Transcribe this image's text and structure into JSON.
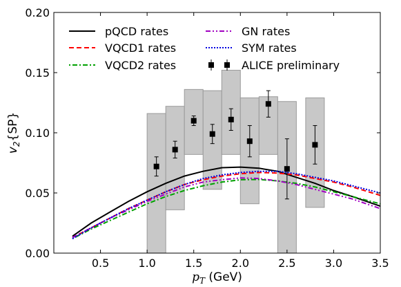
{
  "chart_data": {
    "type": "line",
    "xlabel_var": "p",
    "xlabel_sub": "T",
    "xlabel_unit": " (GeV)",
    "ylabel_var": "v",
    "ylabel_sub": "2",
    "ylabel_tail": "{SP}",
    "xlim": [
      0.0,
      3.5
    ],
    "ylim": [
      0.0,
      0.2
    ],
    "xticks": [
      {
        "v": 0.5,
        "label": "0.5"
      },
      {
        "v": 1.0,
        "label": "1.0"
      },
      {
        "v": 1.5,
        "label": "1.5"
      },
      {
        "v": 2.0,
        "label": "2.0"
      },
      {
        "v": 2.5,
        "label": "2.5"
      },
      {
        "v": 3.0,
        "label": "3.0"
      },
      {
        "v": 3.5,
        "label": "3.5"
      }
    ],
    "yticks": [
      {
        "v": 0.0,
        "label": "0.00"
      },
      {
        "v": 0.05,
        "label": "0.05"
      },
      {
        "v": 0.1,
        "label": "0.10"
      },
      {
        "v": 0.15,
        "label": "0.15"
      },
      {
        "v": 0.2,
        "label": "0.20"
      }
    ],
    "legend_position": "top",
    "series": [
      {
        "name": "pQCD rates",
        "color": "#000000",
        "dash": "",
        "legend_col": 0,
        "legend_row": 0,
        "x": [
          0.2,
          0.4,
          0.6,
          0.8,
          1.0,
          1.2,
          1.4,
          1.6,
          1.8,
          2.0,
          2.2,
          2.4,
          2.6,
          2.8,
          3.0,
          3.2,
          3.5
        ],
        "y": [
          0.014,
          0.025,
          0.034,
          0.043,
          0.051,
          0.058,
          0.064,
          0.068,
          0.071,
          0.0715,
          0.0705,
          0.068,
          0.063,
          0.058,
          0.052,
          0.047,
          0.039
        ]
      },
      {
        "name": "VQCD1 rates",
        "color": "#ff0000",
        "dash": "7,4",
        "legend_col": 0,
        "legend_row": 1,
        "x": [
          0.2,
          0.4,
          0.6,
          0.8,
          1.0,
          1.2,
          1.4,
          1.6,
          1.8,
          2.0,
          2.2,
          2.4,
          2.6,
          2.8,
          3.0,
          3.2,
          3.5
        ],
        "y": [
          0.013,
          0.021,
          0.029,
          0.037,
          0.044,
          0.051,
          0.057,
          0.061,
          0.064,
          0.066,
          0.067,
          0.0665,
          0.065,
          0.062,
          0.059,
          0.055,
          0.048
        ]
      },
      {
        "name": "VQCD2 rates",
        "color": "#00a000",
        "dash": "2,3,7,3",
        "legend_col": 0,
        "legend_row": 2,
        "x": [
          0.2,
          0.4,
          0.6,
          0.8,
          1.0,
          1.2,
          1.4,
          1.6,
          1.8,
          2.0,
          2.2,
          2.4,
          2.6,
          2.8,
          3.0,
          3.2,
          3.5
        ],
        "y": [
          0.012,
          0.02,
          0.027,
          0.034,
          0.041,
          0.047,
          0.052,
          0.056,
          0.059,
          0.061,
          0.0612,
          0.06,
          0.058,
          0.055,
          0.051,
          0.047,
          0.041
        ]
      },
      {
        "name": "GN rates",
        "color": "#a000c0",
        "dash": "7,3,2,3,2,3",
        "legend_col": 1,
        "legend_row": 0,
        "x": [
          0.2,
          0.4,
          0.6,
          0.8,
          1.0,
          1.2,
          1.4,
          1.6,
          1.8,
          2.0,
          2.2,
          2.4,
          2.6,
          2.8,
          3.0,
          3.2,
          3.5
        ],
        "y": [
          0.013,
          0.021,
          0.029,
          0.036,
          0.043,
          0.049,
          0.055,
          0.059,
          0.061,
          0.0625,
          0.062,
          0.06,
          0.057,
          0.053,
          0.049,
          0.045,
          0.037
        ]
      },
      {
        "name": "SYM rates",
        "color": "#0000e0",
        "dash": "2,2",
        "legend_col": 1,
        "legend_row": 1,
        "x": [
          0.2,
          0.4,
          0.6,
          0.8,
          1.0,
          1.2,
          1.4,
          1.6,
          1.8,
          2.0,
          2.2,
          2.4,
          2.6,
          2.8,
          3.0,
          3.2,
          3.5
        ],
        "y": [
          0.012,
          0.021,
          0.029,
          0.037,
          0.044,
          0.051,
          0.057,
          0.062,
          0.065,
          0.067,
          0.068,
          0.068,
          0.066,
          0.063,
          0.06,
          0.056,
          0.05
        ]
      }
    ],
    "data_points": {
      "name": "ALICE preliminary",
      "legend_col": 1,
      "legend_row": 2,
      "points": [
        {
          "x": 1.1,
          "y": 0.072,
          "err": 0.008,
          "sys_low": 0.0,
          "sys_high": 0.116,
          "half_width": 0.1
        },
        {
          "x": 1.3,
          "y": 0.086,
          "err": 0.007,
          "sys_low": 0.036,
          "sys_high": 0.122,
          "half_width": 0.1
        },
        {
          "x": 1.5,
          "y": 0.11,
          "err": 0.004,
          "sys_low": 0.082,
          "sys_high": 0.136,
          "half_width": 0.1
        },
        {
          "x": 1.7,
          "y": 0.099,
          "err": 0.008,
          "sys_low": 0.053,
          "sys_high": 0.135,
          "half_width": 0.1
        },
        {
          "x": 1.9,
          "y": 0.111,
          "err": 0.009,
          "sys_low": 0.082,
          "sys_high": 0.152,
          "half_width": 0.1
        },
        {
          "x": 2.1,
          "y": 0.093,
          "err": 0.013,
          "sys_low": 0.041,
          "sys_high": 0.129,
          "half_width": 0.1
        },
        {
          "x": 2.3,
          "y": 0.124,
          "err": 0.011,
          "sys_low": 0.082,
          "sys_high": 0.13,
          "half_width": 0.1
        },
        {
          "x": 2.5,
          "y": 0.07,
          "err": 0.025,
          "sys_low": 0.0,
          "sys_high": 0.126,
          "half_width": 0.1
        },
        {
          "x": 2.8,
          "y": 0.09,
          "err": 0.016,
          "sys_low": 0.038,
          "sys_high": 0.129,
          "half_width": 0.1
        }
      ]
    }
  }
}
